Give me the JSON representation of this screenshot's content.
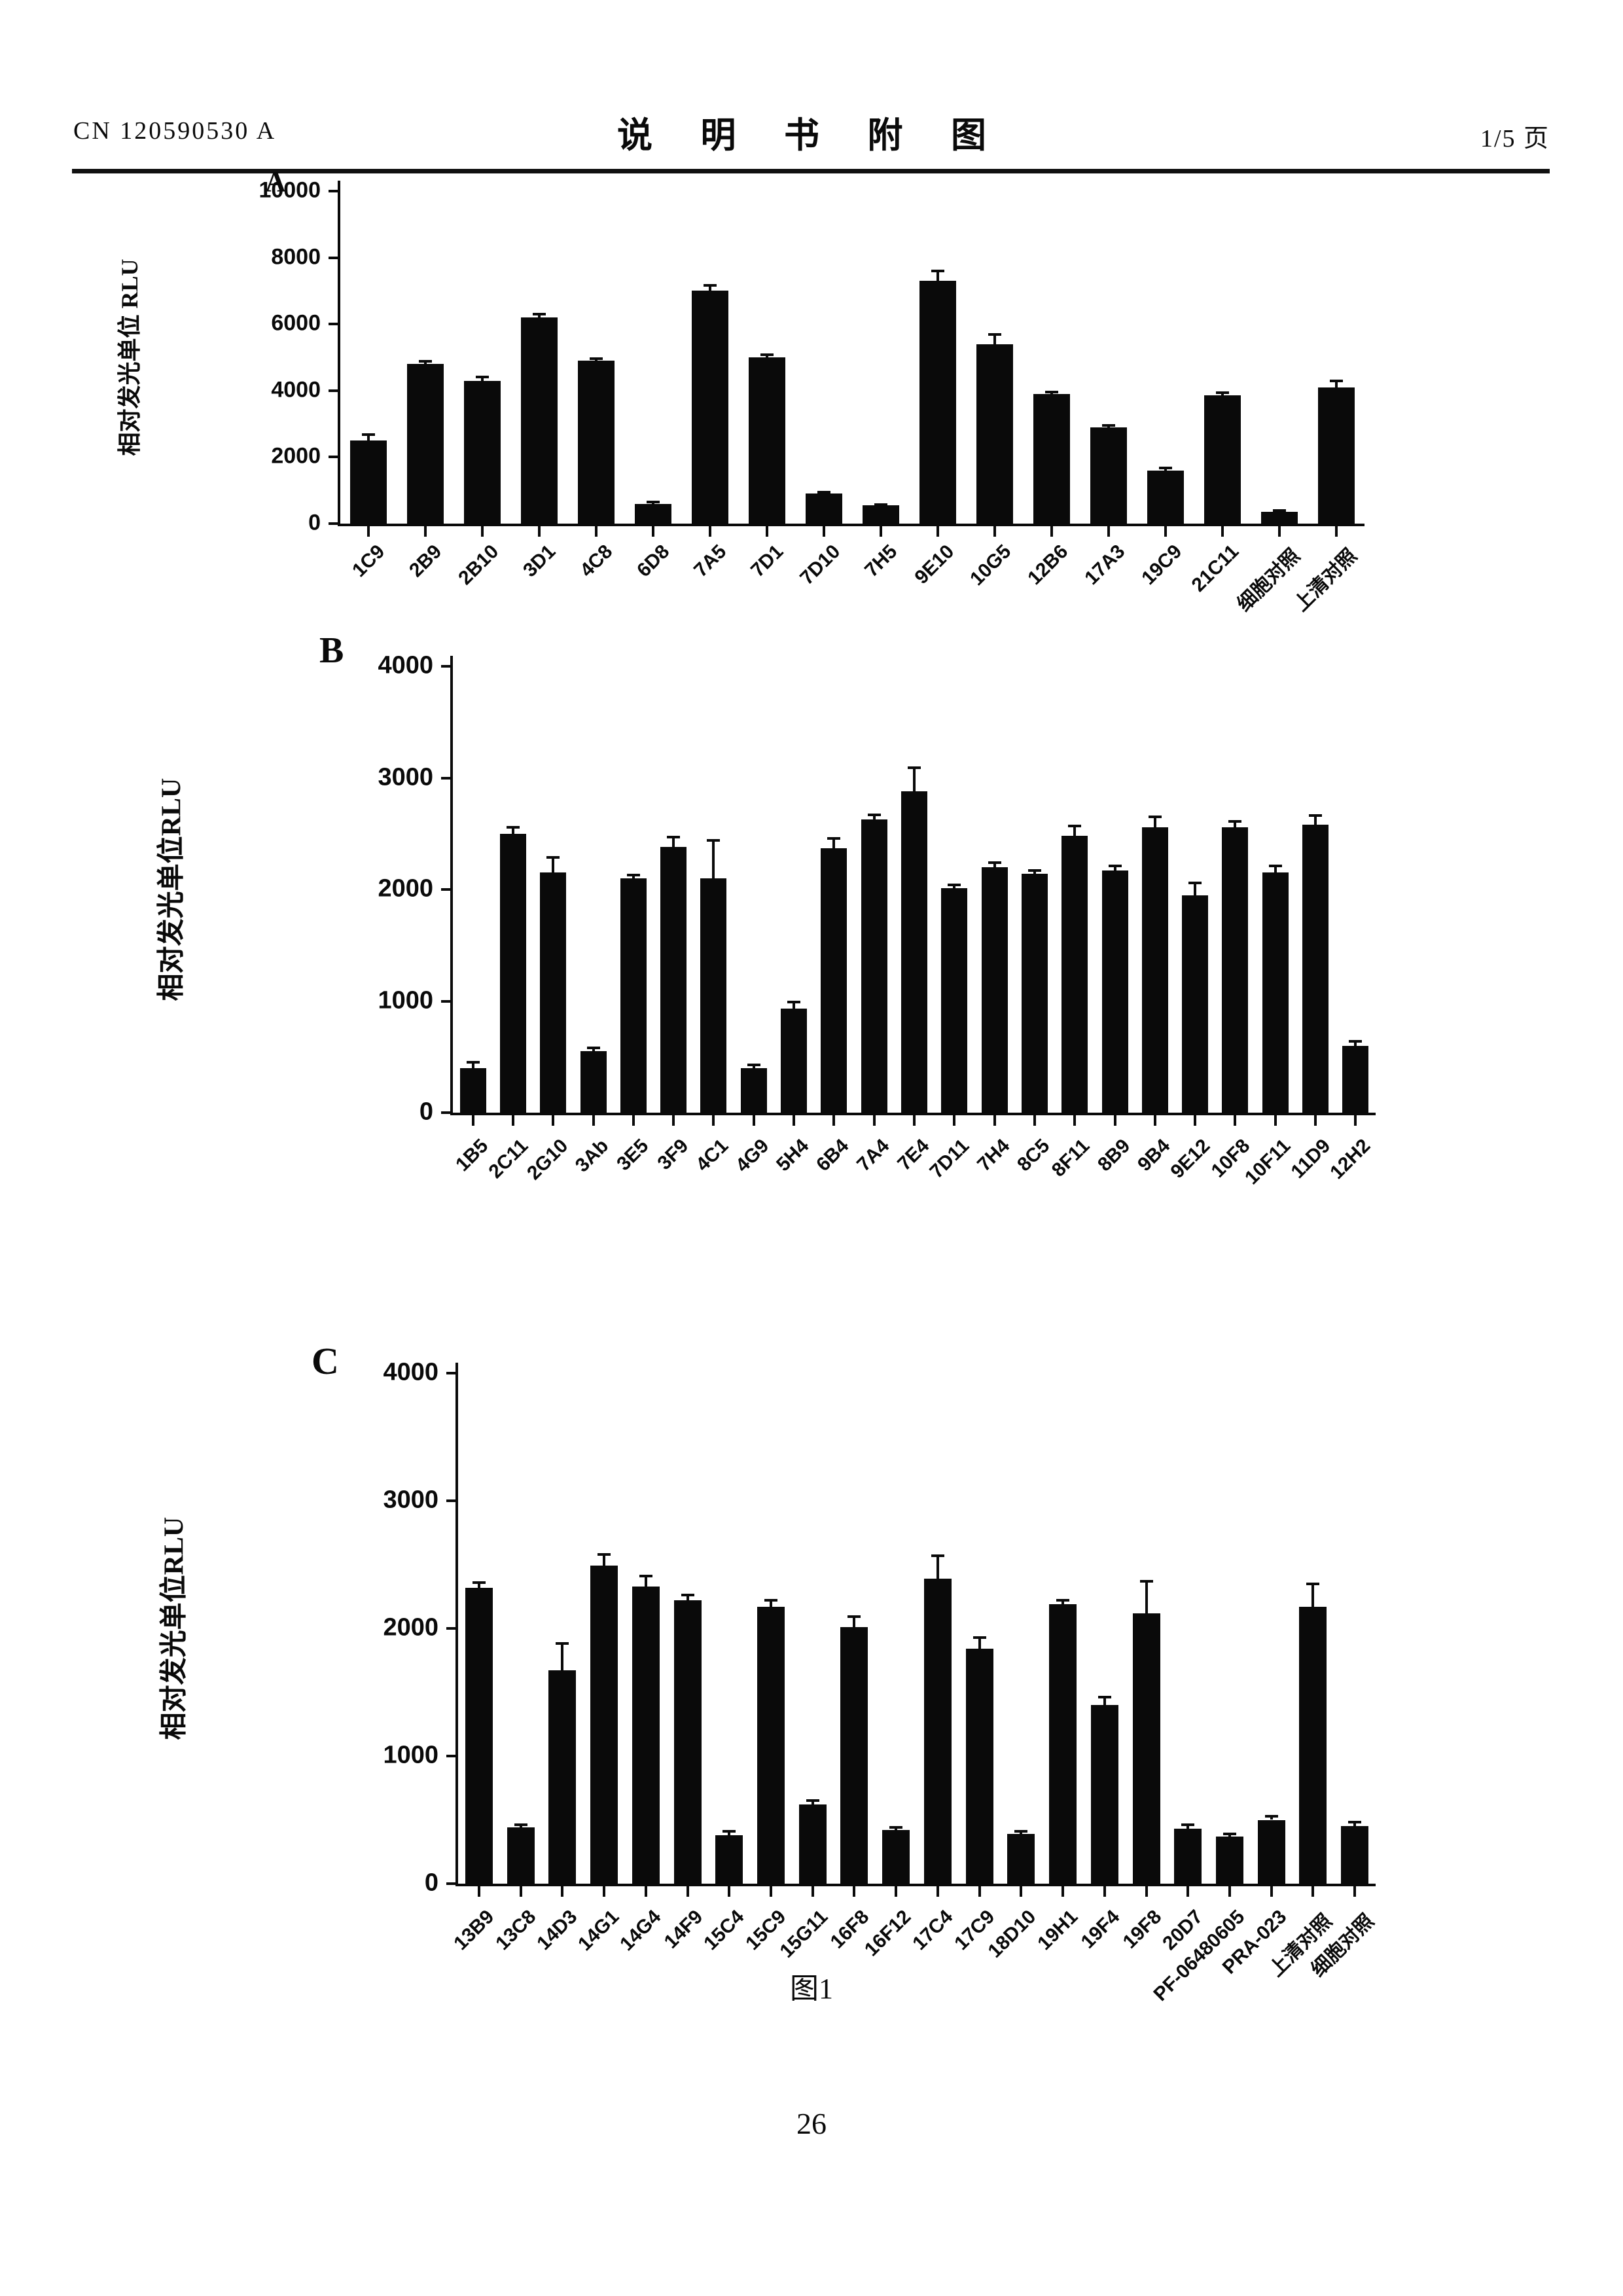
{
  "page": {
    "header_left": "CN 120590530 A",
    "header_center": "说 明 书 附 图",
    "header_right": "1/5 页",
    "figure_caption": "图1",
    "page_number": "26"
  },
  "chart_data": [
    {
      "type": "bar",
      "panel": "A",
      "title": "",
      "ylabel": "相对发光单位 RLU",
      "xlabel": "",
      "ylim": [
        0,
        10000
      ],
      "yticks": [
        0,
        2000,
        4000,
        6000,
        8000,
        10000
      ],
      "grid": false,
      "bar_color": "#0a0a0a",
      "categories": [
        "1C9",
        "2B9",
        "2B10",
        "3D1",
        "4C8",
        "6D8",
        "7A5",
        "7D1",
        "7D10",
        "7H5",
        "9E10",
        "10G5",
        "12B6",
        "17A3",
        "19C9",
        "21C11",
        "细胞对照",
        "上清对照"
      ],
      "values": [
        2500,
        4800,
        4300,
        6200,
        4900,
        600,
        7000,
        5000,
        900,
        550,
        7300,
        5400,
        3900,
        2900,
        1600,
        3850,
        350,
        4100
      ],
      "errors": [
        180,
        80,
        100,
        90,
        70,
        50,
        160,
        80,
        40,
        30,
        300,
        280,
        60,
        60,
        80,
        90,
        40,
        200
      ]
    },
    {
      "type": "bar",
      "panel": "B",
      "title": "",
      "ylabel": "相对发光单位RLU",
      "xlabel": "",
      "ylim": [
        0,
        4000
      ],
      "yticks": [
        0,
        1000,
        2000,
        3000,
        4000
      ],
      "grid": false,
      "bar_color": "#0a0a0a",
      "categories": [
        "1B5",
        "2C11",
        "2G10",
        "3Ab",
        "3E5",
        "3F9",
        "4C1",
        "4G9",
        "5H4",
        "6B4",
        "7A4",
        "7E4",
        "7D11",
        "7H4",
        "8C5",
        "8F11",
        "8B9",
        "9B4",
        "9E12",
        "10F8",
        "10F11",
        "11D9",
        "12H2"
      ],
      "values": [
        400,
        2500,
        2150,
        550,
        2100,
        2380,
        2100,
        400,
        930,
        2370,
        2630,
        2880,
        2010,
        2200,
        2140,
        2480,
        2170,
        2560,
        1950,
        2560,
        2150,
        2580,
        600
      ],
      "errors": [
        50,
        60,
        140,
        30,
        30,
        90,
        340,
        30,
        60,
        90,
        40,
        210,
        30,
        40,
        30,
        90,
        40,
        90,
        110,
        50,
        60,
        80,
        40
      ]
    },
    {
      "type": "bar",
      "panel": "C",
      "title": "",
      "ylabel": "相对发光单位RLU",
      "xlabel": "",
      "ylim": [
        0,
        4000
      ],
      "yticks": [
        0,
        1000,
        2000,
        3000,
        4000
      ],
      "grid": false,
      "bar_color": "#0a0a0a",
      "categories": [
        "13B9",
        "13C8",
        "14D3",
        "14G1",
        "14G4",
        "14F9",
        "15C4",
        "15C9",
        "15G11",
        "16F8",
        "16F12",
        "17C4",
        "17C9",
        "18D10",
        "19H1",
        "19F4",
        "19F8",
        "20D7",
        "PF-06480605",
        "PRA-023",
        "上清对照",
        "细胞对照"
      ],
      "values": [
        2320,
        440,
        1670,
        2490,
        2330,
        2220,
        380,
        2170,
        620,
        2010,
        420,
        2390,
        1840,
        390,
        2190,
        1400,
        2120,
        430,
        370,
        500,
        2170,
        450
      ],
      "errors": [
        40,
        20,
        210,
        90,
        80,
        40,
        30,
        50,
        30,
        80,
        20,
        180,
        90,
        20,
        30,
        60,
        250,
        30,
        20,
        30,
        180,
        30
      ]
    }
  ]
}
